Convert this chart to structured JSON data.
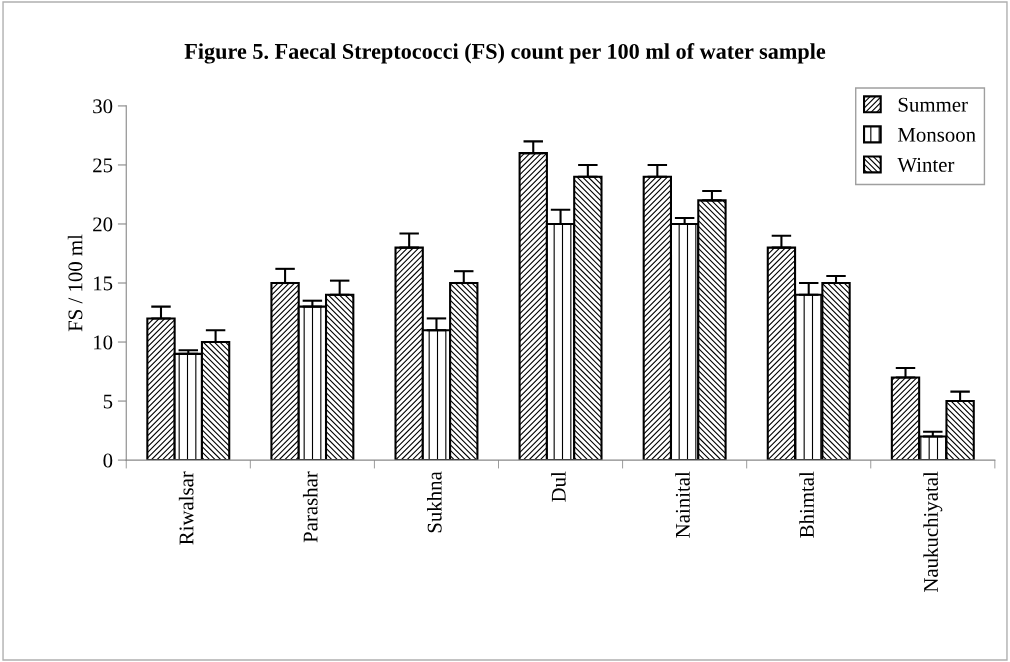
{
  "chart_data": {
    "type": "bar",
    "title": "Figure 5. Faecal Streptococci (FS) count per 100 ml of water sample",
    "ylabel": "FS / 100 ml",
    "categories": [
      "Riwalsar",
      "Parashar",
      "Sukhna",
      "Dul",
      "Nainital",
      "Bhimtal",
      "Naukuchiyatal"
    ],
    "series": [
      {
        "name": "Summer",
        "color": "#000000",
        "values": [
          12,
          15,
          18,
          26,
          24,
          18,
          7
        ],
        "errors": [
          [
            12,
            13
          ],
          [
            15,
            16.2
          ],
          [
            18,
            19.2
          ],
          [
            26,
            27
          ],
          [
            24,
            25
          ],
          [
            18,
            19
          ],
          [
            7,
            7.8
          ]
        ]
      },
      {
        "name": "Monsoon",
        "color": "#000000",
        "values": [
          9,
          13,
          11,
          20,
          20,
          14,
          2
        ],
        "errors": [
          [
            9,
            9.3
          ],
          [
            13,
            13.5
          ],
          [
            11,
            12
          ],
          [
            20,
            21.2
          ],
          [
            20,
            20.5
          ],
          [
            14,
            15
          ],
          [
            2,
            2.4
          ]
        ]
      },
      {
        "name": "Winter",
        "color": "#000000",
        "values": [
          10,
          14,
          15,
          24,
          22,
          15,
          5
        ],
        "errors": [
          [
            10,
            11
          ],
          [
            14,
            15.2
          ],
          [
            15,
            16
          ],
          [
            24,
            25
          ],
          [
            22,
            22.8
          ],
          [
            15,
            15.6
          ],
          [
            5,
            5.8
          ]
        ]
      }
    ],
    "ylim": [
      0,
      30
    ],
    "yticks": [
      0,
      5,
      10,
      15,
      20,
      25,
      30
    ],
    "grid": false,
    "legend": "top right"
  }
}
